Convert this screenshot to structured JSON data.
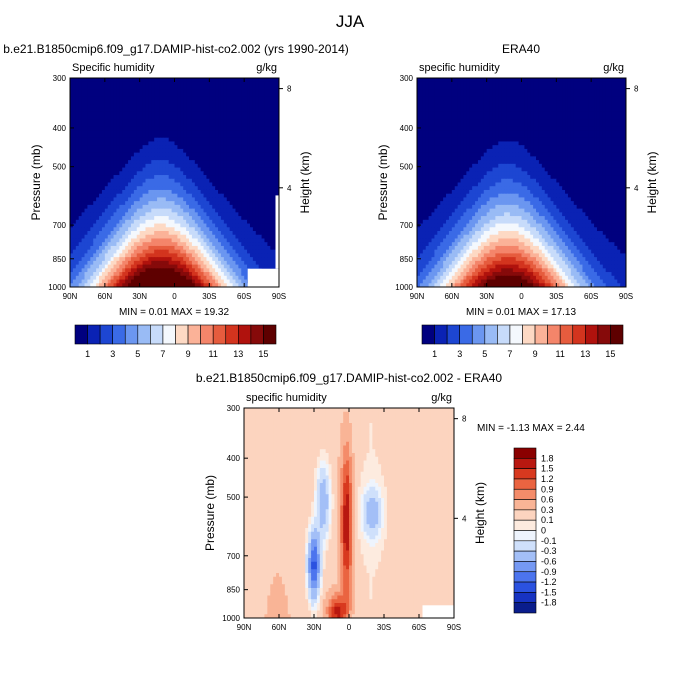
{
  "figure_title": "JJA",
  "chart_data": [
    {
      "type": "heatmap",
      "title": "b.e21.B1850cmip6.f09_g17.DAMIP-hist-co2.002 (yrs 1990-2014)",
      "left_label": "Specific humidity",
      "right_label": "g/kg",
      "ylabel": "Pressure (mb)",
      "ylabel_right": "Height (km)",
      "x_ticks": [
        "90N",
        "60N",
        "30N",
        "0",
        "30S",
        "60S",
        "90S"
      ],
      "y_ticks": [
        300,
        400,
        500,
        700,
        850,
        1000
      ],
      "height_ticks": [
        8,
        4
      ],
      "stats": "MIN =   0.01  MAX =  19.32",
      "min": 0.01,
      "max": 19.32,
      "peak_value": 18.5,
      "colorbar_labels": [
        "1",
        "3",
        "5",
        "7",
        "9",
        "11",
        "13",
        "15"
      ],
      "colorbar_levels": [
        1,
        2,
        3,
        4,
        5,
        6,
        7,
        8,
        9,
        10,
        11,
        12,
        13,
        14,
        15
      ],
      "colorbar_colors": [
        "#00007f",
        "#0a22b4",
        "#1d46d2",
        "#3a6ae6",
        "#6b96f0",
        "#99bbf5",
        "#c7dbfa",
        "#f4f8fd",
        "#fdd9c4",
        "#fbb298",
        "#f4856a",
        "#e65c3e",
        "#d3341e",
        "#b0120d",
        "#860a0a",
        "#5e0000"
      ]
    },
    {
      "type": "heatmap",
      "title": "ERA40",
      "left_label": "specific humidity",
      "right_label": "g/kg",
      "ylabel": "Pressure (mb)",
      "ylabel_right": "Height (km)",
      "x_ticks": [
        "90N",
        "60N",
        "30N",
        "0",
        "30S",
        "60S",
        "90S"
      ],
      "y_ticks": [
        300,
        400,
        500,
        700,
        850,
        1000
      ],
      "height_ticks": [
        8,
        4
      ],
      "stats": "MIN =   0.01  MAX =  17.13",
      "min": 0.01,
      "max": 17.13,
      "peak_value": 16.5,
      "colorbar_labels": [
        "1",
        "3",
        "5",
        "7",
        "9",
        "11",
        "13",
        "15"
      ]
    },
    {
      "type": "heatmap",
      "title": "b.e21.B1850cmip6.f09_g17.DAMIP-hist-co2.002 - ERA40",
      "left_label": "specific humidity",
      "right_label": "g/kg",
      "ylabel": "Pressure (mb)",
      "ylabel_right": "Height (km)",
      "x_ticks": [
        "90N",
        "60N",
        "30N",
        "0",
        "30S",
        "60S",
        "90S"
      ],
      "y_ticks": [
        300,
        400,
        500,
        700,
        850,
        1000
      ],
      "height_ticks": [
        8,
        4
      ],
      "stats": "MIN =  -1.13  MAX =   2.44",
      "min": -1.13,
      "max": 2.44,
      "colorbar_labels": [
        "1.8",
        "1.5",
        "1.2",
        "0.9",
        "0.6",
        "0.3",
        "0.1",
        "0",
        "-0.1",
        "-0.3",
        "-0.6",
        "-0.9",
        "-1.2",
        "-1.5",
        "-1.8"
      ],
      "colorbar_levels": [
        -1.8,
        -1.5,
        -1.2,
        -0.9,
        -0.6,
        -0.3,
        -0.1,
        0,
        0.1,
        0.3,
        0.6,
        0.9,
        1.2,
        1.5,
        1.8
      ],
      "colorbar_colors": [
        "#0a1d8c",
        "#1733c2",
        "#2b52e0",
        "#4c74ee",
        "#7599f3",
        "#a3bff7",
        "#cfe0fb",
        "#eef4fd",
        "#fdebdf",
        "#fcd4bf",
        "#f9b496",
        "#f48c6a",
        "#ea6441",
        "#d8391f",
        "#b81810",
        "#8a0000"
      ]
    }
  ]
}
